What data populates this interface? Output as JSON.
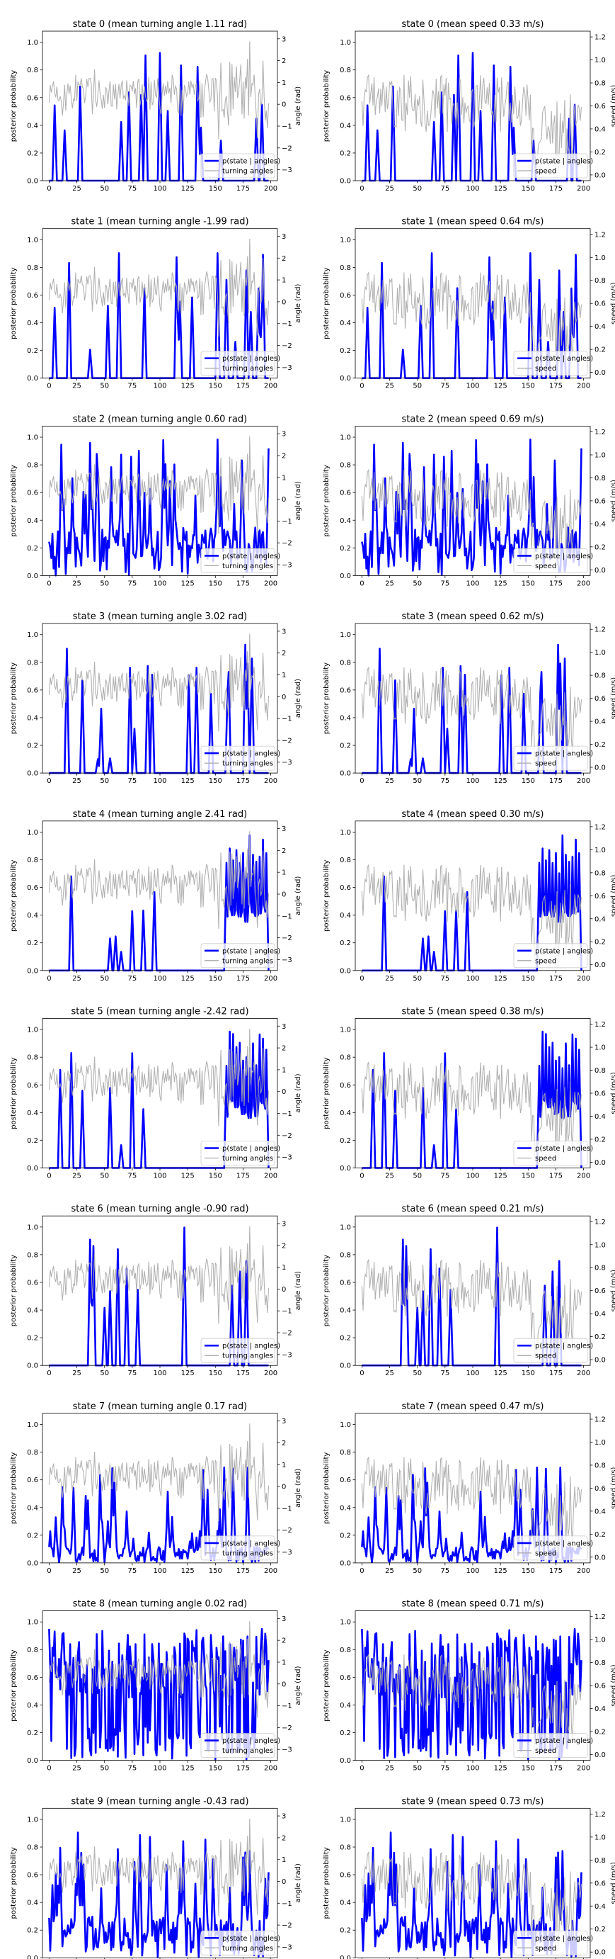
{
  "figure": {
    "rows": 10,
    "cols": 2,
    "left_ylabel": "posterior probability",
    "left_yticks": [
      "0.0",
      "0.2",
      "0.4",
      "0.6",
      "0.8",
      "1.0"
    ],
    "xticks": [
      "0",
      "25",
      "50",
      "75",
      "100",
      "125",
      "150",
      "175",
      "200"
    ],
    "angle_axis_label": "angle (rad)",
    "angle_ticks": [
      "−3",
      "−2",
      "−1",
      "0",
      "1",
      "2",
      "3"
    ],
    "speed_axis_label": "speed (m/s)",
    "speed_ticks": [
      "0.0",
      "0.2",
      "0.4",
      "0.6",
      "0.8",
      "1.0",
      "1.2"
    ],
    "legend_posterior": "p(state | angles)",
    "legend_angle": "turning angles",
    "legend_speed": "speed",
    "colors": {
      "posterior": "#0000ff",
      "observation": "#aaaaaa"
    }
  },
  "chart_data": [
    {
      "type": "line",
      "panel": "angle",
      "state": 0,
      "title": "state 0 (mean turning angle 1.11 rad)",
      "xlim": [
        -6,
        206
      ],
      "ylim": [
        0,
        1.08
      ],
      "y2lim": [
        -3.5,
        3.35
      ],
      "series": [
        {
          "name": "p(state | angles)",
          "role": "posterior"
        },
        {
          "name": "turning angles",
          "role": "observation"
        }
      ]
    },
    {
      "type": "line",
      "panel": "speed",
      "state": 0,
      "title": "state 0 (mean speed 0.33 m/s)",
      "xlim": [
        -6,
        206
      ],
      "ylim": [
        0,
        1.08
      ],
      "y2lim": [
        -0.05,
        1.25
      ],
      "series": [
        {
          "name": "p(state | angles)",
          "role": "posterior"
        },
        {
          "name": "speed",
          "role": "observation"
        }
      ]
    },
    {
      "type": "line",
      "panel": "angle",
      "state": 1,
      "title": "state 1 (mean turning angle -1.99 rad)",
      "xlim": [
        -6,
        206
      ],
      "ylim": [
        0,
        1.08
      ],
      "y2lim": [
        -3.5,
        3.35
      ],
      "series": [
        {
          "name": "p(state | angles)",
          "role": "posterior"
        },
        {
          "name": "turning angles",
          "role": "observation"
        }
      ]
    },
    {
      "type": "line",
      "panel": "speed",
      "state": 1,
      "title": "state 1 (mean speed 0.64 m/s)",
      "xlim": [
        -6,
        206
      ],
      "ylim": [
        0,
        1.08
      ],
      "y2lim": [
        -0.05,
        1.25
      ],
      "series": [
        {
          "name": "p(state | angles)",
          "role": "posterior"
        },
        {
          "name": "speed",
          "role": "observation"
        }
      ]
    },
    {
      "type": "line",
      "panel": "angle",
      "state": 2,
      "title": "state 2 (mean turning angle 0.60 rad)",
      "xlim": [
        -6,
        206
      ],
      "ylim": [
        0,
        1.08
      ],
      "y2lim": [
        -3.5,
        3.35
      ],
      "series": [
        {
          "name": "p(state | angles)",
          "role": "posterior"
        },
        {
          "name": "turning angles",
          "role": "observation"
        }
      ]
    },
    {
      "type": "line",
      "panel": "speed",
      "state": 2,
      "title": "state 2 (mean speed 0.69 m/s)",
      "xlim": [
        -6,
        206
      ],
      "ylim": [
        0,
        1.08
      ],
      "y2lim": [
        -0.05,
        1.25
      ],
      "series": [
        {
          "name": "p(state | angles)",
          "role": "posterior"
        },
        {
          "name": "speed",
          "role": "observation"
        }
      ]
    },
    {
      "type": "line",
      "panel": "angle",
      "state": 3,
      "title": "state 3 (mean turning angle 3.02 rad)",
      "xlim": [
        -6,
        206
      ],
      "ylim": [
        0,
        1.08
      ],
      "y2lim": [
        -3.5,
        3.35
      ],
      "series": [
        {
          "name": "p(state | angles)",
          "role": "posterior"
        },
        {
          "name": "turning angles",
          "role": "observation"
        }
      ]
    },
    {
      "type": "line",
      "panel": "speed",
      "state": 3,
      "title": "state 3 (mean speed 0.62 m/s)",
      "xlim": [
        -6,
        206
      ],
      "ylim": [
        0,
        1.08
      ],
      "y2lim": [
        -0.05,
        1.25
      ],
      "series": [
        {
          "name": "p(state | angles)",
          "role": "posterior"
        },
        {
          "name": "speed",
          "role": "observation"
        }
      ]
    },
    {
      "type": "line",
      "panel": "angle",
      "state": 4,
      "title": "state 4 (mean turning angle 2.41 rad)",
      "xlim": [
        -6,
        206
      ],
      "ylim": [
        0,
        1.08
      ],
      "y2lim": [
        -3.5,
        3.35
      ],
      "series": [
        {
          "name": "p(state | angles)",
          "role": "posterior"
        },
        {
          "name": "turning angles",
          "role": "observation"
        }
      ]
    },
    {
      "type": "line",
      "panel": "speed",
      "state": 4,
      "title": "state 4 (mean speed 0.30 m/s)",
      "xlim": [
        -6,
        206
      ],
      "ylim": [
        0,
        1.08
      ],
      "y2lim": [
        -0.05,
        1.25
      ],
      "series": [
        {
          "name": "p(state | angles)",
          "role": "posterior"
        },
        {
          "name": "speed",
          "role": "observation"
        }
      ]
    },
    {
      "type": "line",
      "panel": "angle",
      "state": 5,
      "title": "state 5 (mean turning angle -2.42 rad)",
      "xlim": [
        -6,
        206
      ],
      "ylim": [
        0,
        1.08
      ],
      "y2lim": [
        -3.5,
        3.35
      ],
      "series": [
        {
          "name": "p(state | angles)",
          "role": "posterior"
        },
        {
          "name": "turning angles",
          "role": "observation"
        }
      ]
    },
    {
      "type": "line",
      "panel": "speed",
      "state": 5,
      "title": "state 5 (mean speed 0.38 m/s)",
      "xlim": [
        -6,
        206
      ],
      "ylim": [
        0,
        1.08
      ],
      "y2lim": [
        -0.05,
        1.25
      ],
      "series": [
        {
          "name": "p(state | angles)",
          "role": "posterior"
        },
        {
          "name": "speed",
          "role": "observation"
        }
      ]
    },
    {
      "type": "line",
      "panel": "angle",
      "state": 6,
      "title": "state 6 (mean turning angle -0.90 rad)",
      "xlim": [
        -6,
        206
      ],
      "ylim": [
        0,
        1.08
      ],
      "y2lim": [
        -3.5,
        3.35
      ],
      "series": [
        {
          "name": "p(state | angles)",
          "role": "posterior"
        },
        {
          "name": "turning angles",
          "role": "observation"
        }
      ]
    },
    {
      "type": "line",
      "panel": "speed",
      "state": 6,
      "title": "state 6 (mean speed 0.21 m/s)",
      "xlim": [
        -6,
        206
      ],
      "ylim": [
        0,
        1.08
      ],
      "y2lim": [
        -0.05,
        1.25
      ],
      "series": [
        {
          "name": "p(state | angles)",
          "role": "posterior"
        },
        {
          "name": "speed",
          "role": "observation"
        }
      ]
    },
    {
      "type": "line",
      "panel": "angle",
      "state": 7,
      "title": "state 7 (mean turning angle 0.17 rad)",
      "xlim": [
        -6,
        206
      ],
      "ylim": [
        0,
        1.08
      ],
      "y2lim": [
        -3.5,
        3.35
      ],
      "series": [
        {
          "name": "p(state | angles)",
          "role": "posterior"
        },
        {
          "name": "turning angles",
          "role": "observation"
        }
      ]
    },
    {
      "type": "line",
      "panel": "speed",
      "state": 7,
      "title": "state 7 (mean speed 0.47 m/s)",
      "xlim": [
        -6,
        206
      ],
      "ylim": [
        0,
        1.08
      ],
      "y2lim": [
        -0.05,
        1.25
      ],
      "series": [
        {
          "name": "p(state | angles)",
          "role": "posterior"
        },
        {
          "name": "speed",
          "role": "observation"
        }
      ]
    },
    {
      "type": "line",
      "panel": "angle",
      "state": 8,
      "title": "state 8 (mean turning angle 0.02 rad)",
      "xlim": [
        -6,
        206
      ],
      "ylim": [
        0,
        1.08
      ],
      "y2lim": [
        -3.5,
        3.35
      ],
      "series": [
        {
          "name": "p(state | angles)",
          "role": "posterior"
        },
        {
          "name": "turning angles",
          "role": "observation"
        }
      ]
    },
    {
      "type": "line",
      "panel": "speed",
      "state": 8,
      "title": "state 8 (mean speed 0.71 m/s)",
      "xlim": [
        -6,
        206
      ],
      "ylim": [
        0,
        1.08
      ],
      "y2lim": [
        -0.05,
        1.25
      ],
      "series": [
        {
          "name": "p(state | angles)",
          "role": "posterior"
        },
        {
          "name": "speed",
          "role": "observation"
        }
      ]
    },
    {
      "type": "line",
      "panel": "angle",
      "state": 9,
      "title": "state 9 (mean turning angle -0.43 rad)",
      "xlim": [
        -6,
        206
      ],
      "ylim": [
        0,
        1.08
      ],
      "y2lim": [
        -3.5,
        3.35
      ],
      "series": [
        {
          "name": "p(state | angles)",
          "role": "posterior"
        },
        {
          "name": "turning angles",
          "role": "observation"
        }
      ]
    },
    {
      "type": "line",
      "panel": "speed",
      "state": 9,
      "title": "state 9 (mean speed 0.73 m/s)",
      "xlim": [
        -6,
        206
      ],
      "ylim": [
        0,
        1.08
      ],
      "y2lim": [
        -0.05,
        1.25
      ],
      "series": [
        {
          "name": "p(state | angles)",
          "role": "posterior"
        },
        {
          "name": "speed",
          "role": "observation"
        }
      ]
    }
  ]
}
